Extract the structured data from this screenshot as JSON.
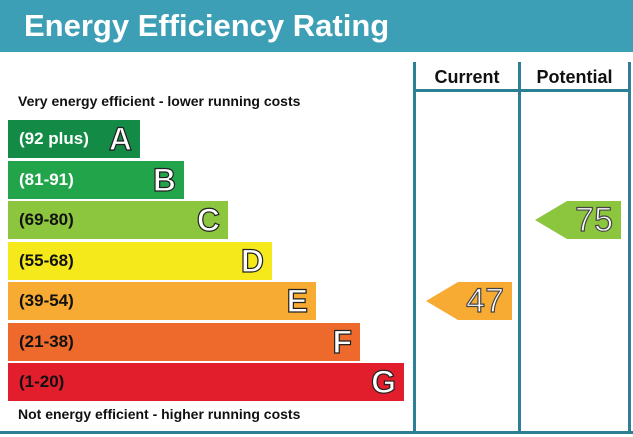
{
  "title": "Energy Efficiency Rating",
  "columns": {
    "current": "Current",
    "potential": "Potential"
  },
  "notes": {
    "top": "Very energy efficient - lower running costs",
    "bottom": "Not energy efficient - higher running costs"
  },
  "colors": {
    "header": "#3c9fb6",
    "divider": "#2d7f96"
  },
  "chart_data": {
    "type": "bar",
    "title": "Energy Efficiency Rating",
    "categories": [
      "A",
      "B",
      "C",
      "D",
      "E",
      "F",
      "G"
    ],
    "bands": [
      {
        "letter": "A",
        "range": "(92 plus)",
        "color": "#138a45",
        "text_color": "#ffffff"
      },
      {
        "letter": "B",
        "range": "(81-91)",
        "color": "#21a44a",
        "text_color": "#ffffff"
      },
      {
        "letter": "C",
        "range": "(69-80)",
        "color": "#8cc63e",
        "text_color": "#111111"
      },
      {
        "letter": "D",
        "range": "(55-68)",
        "color": "#f5e91c",
        "text_color": "#111111"
      },
      {
        "letter": "E",
        "range": "(39-54)",
        "color": "#f7ab33",
        "text_color": "#111111"
      },
      {
        "letter": "F",
        "range": "(21-38)",
        "color": "#ee6a2c",
        "text_color": "#111111"
      },
      {
        "letter": "G",
        "range": "(1-20)",
        "color": "#e21d2c",
        "text_color": "#111111"
      }
    ],
    "current": {
      "value": 47,
      "band": "E",
      "color": "#f7ab33"
    },
    "potential": {
      "value": 75,
      "band": "C",
      "color": "#8cc63e"
    }
  }
}
